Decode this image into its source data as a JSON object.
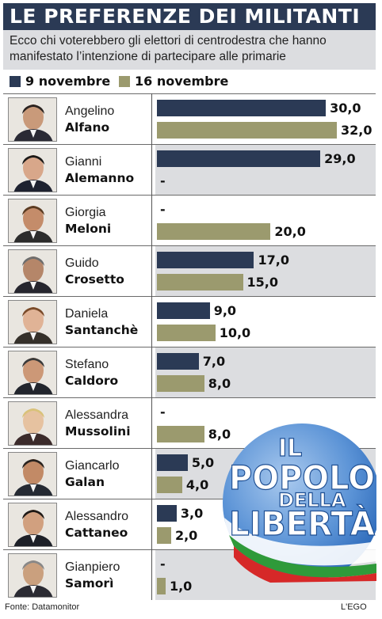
{
  "title": "LE PREFERENZE DEI MILITANTI",
  "subtitle_line1": "Ecco chi voterebbero gli elettori di centrodestra che hanno",
  "subtitle_line2": "manifestato l’intenzione di partecipare alle primarie",
  "source": "Fonte: Datamonitor",
  "credit": "L'EGO",
  "logo_text": {
    "line1": "IL",
    "line2": "POPOLO",
    "line3": "DELLA",
    "line4": "LIBERTÀ"
  },
  "colors": {
    "series1": "#2b3a55",
    "series2": "#9b9a6e",
    "shade": "#dcdde0"
  },
  "chart_data": {
    "type": "bar",
    "orientation": "horizontal",
    "title": "LE PREFERENZE DEI MILITANTI",
    "subtitle": "Ecco chi voterebbero gli elettori di centrodestra che hanno manifestato l’intenzione di partecipare alle primarie",
    "categories": [
      {
        "first": "Angelino",
        "last": "Alfano"
      },
      {
        "first": "Gianni",
        "last": "Alemanno"
      },
      {
        "first": "Giorgia",
        "last": "Meloni"
      },
      {
        "first": "Guido",
        "last": "Crosetto"
      },
      {
        "first": "Daniela",
        "last": "Santanchè"
      },
      {
        "first": "Stefano",
        "last": "Caldoro"
      },
      {
        "first": "Alessandra",
        "last": "Mussolini"
      },
      {
        "first": "Giancarlo",
        "last": "Galan"
      },
      {
        "first": "Alessandro",
        "last": "Cattaneo"
      },
      {
        "first": "Gianpiero",
        "last": "Samorì"
      }
    ],
    "series": [
      {
        "name": "9 novembre",
        "values": [
          30.0,
          29.0,
          null,
          17.0,
          9.0,
          7.0,
          null,
          5.0,
          3.0,
          null
        ],
        "labels": [
          "30,0",
          "29,0",
          "-",
          "17,0",
          "9,0",
          "7,0",
          "-",
          "5,0",
          "3,0",
          "-"
        ]
      },
      {
        "name": "16 novembre",
        "values": [
          32.0,
          null,
          20.0,
          15.0,
          10.0,
          8.0,
          8.0,
          4.0,
          2.0,
          1.0
        ],
        "labels": [
          "32,0",
          "-",
          "20,0",
          "15,0",
          "10,0",
          "8,0",
          "8,0",
          "4,0",
          "2,0",
          "1,0"
        ]
      }
    ],
    "xlim": [
      0,
      32
    ],
    "legend": "top-left",
    "grid": false
  }
}
